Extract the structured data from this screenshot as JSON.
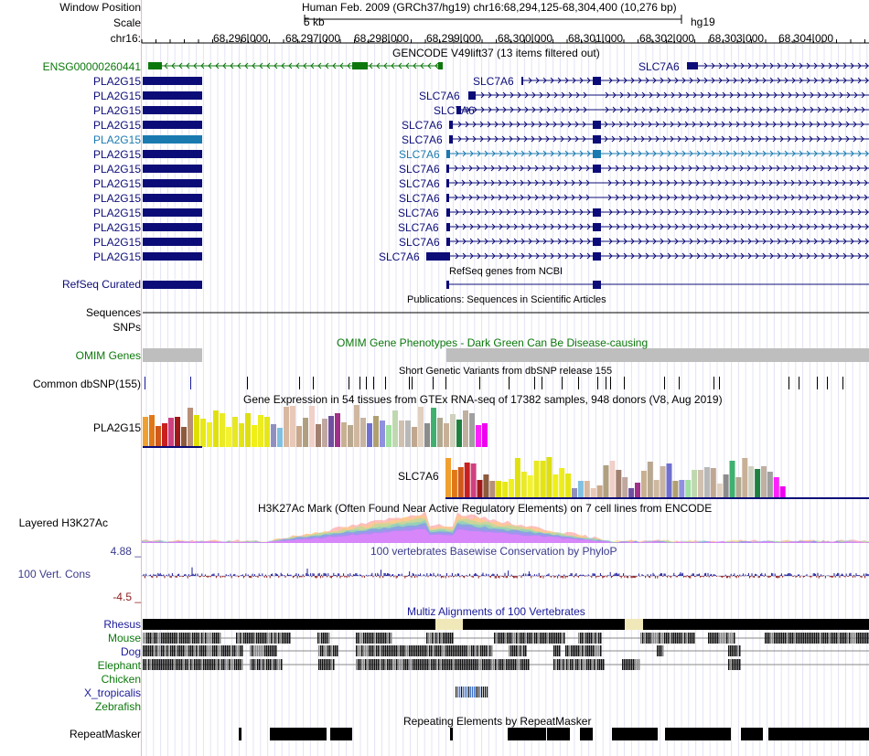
{
  "header": {
    "window_position_label": "Window Position",
    "window_position": "Human Feb. 2009 (GRCh37/hg19)   chr16:68,294,125-68,304,400 (10,276 bp)",
    "scale_label": "Scale",
    "scale_value": "5 kb",
    "assembly": "hg19",
    "chrom_label": "chr16:",
    "ticks": [
      "68,296,000",
      "68,297,000",
      "68,298,000",
      "68,299,000",
      "68,300,000",
      "68,301,000",
      "68,302,000",
      "68,303,000",
      "68,304,000"
    ]
  },
  "gencode": {
    "title": "GENCODE V49lift37 (13 items filtered out)",
    "ensg_label": "ENSG00000260441",
    "slc_top_label": "SLC7A6",
    "pla_labels": [
      "PLA2G15",
      "PLA2G15",
      "PLA2G15",
      "PLA2G15",
      "PLA2G15",
      "PLA2G15",
      "PLA2G15",
      "PLA2G15",
      "PLA2G15",
      "PLA2G15",
      "PLA2G15",
      "PLA2G15",
      "PLA2G15"
    ],
    "slc_labels": [
      "SLC7A6",
      "SLC7A6",
      "SLC7A6",
      "SLC7A6",
      "SLC7A6",
      "SLC7A6",
      "SLC7A6",
      "SLC7A6",
      "SLC7A6",
      "SLC7A6",
      "SLC7A6",
      "SLC7A6",
      "SLC7A6"
    ]
  },
  "refseq": {
    "label": "RefSeq Curated",
    "title": "RefSeq genes from NCBI"
  },
  "publications": {
    "title": "Publications: Sequences in Scientific Articles"
  },
  "sequences": {
    "label": "Sequences"
  },
  "snps": {
    "label": "SNPs"
  },
  "omim": {
    "label": "OMIM Genes",
    "title": "OMIM Gene Phenotypes - Dark Green Can Be Disease-causing"
  },
  "dbsnp": {
    "label": "Common dbSNP(155)",
    "title": "Short Genetic Variants from dbSNP release 155"
  },
  "gtex": {
    "title": "Gene Expression in 54 tissues from GTEx RNA-seq of 17382 samples, 948 donors (V8, Aug 2019)",
    "gene1": "PLA2G15",
    "gene2": "SLC7A6"
  },
  "h3k27ac": {
    "label": "Layered H3K27Ac",
    "title": "H3K27Ac Mark (Often Found Near Active Regulatory Elements) on 7 cell lines from ENCODE"
  },
  "conservation": {
    "max": "4.88 _",
    "label": "100 Vert. Cons",
    "min": "-4.5 _",
    "title": "100 vertebrates Basewise Conservation by PhyloP"
  },
  "multiz": {
    "title": "Multiz Alignments of 100 Vertebrates",
    "species": [
      "Rhesus",
      "Mouse",
      "Dog",
      "Elephant",
      "Chicken",
      "X_tropicalis",
      "Zebrafish"
    ]
  },
  "repeatmasker": {
    "label": "RepeatMasker",
    "title": "Repeating Elements by RepeatMasker"
  },
  "colors": {
    "gene_dark": "#0c0c78",
    "gene_highlight": "#1a7ab0",
    "ensg_green": "#0c780c",
    "omim_grey": "#bebebe",
    "multiz_blue": "#1a1a9a",
    "cons_label": "#3c3c8c",
    "cons_neg": "#8c1a1a"
  }
}
